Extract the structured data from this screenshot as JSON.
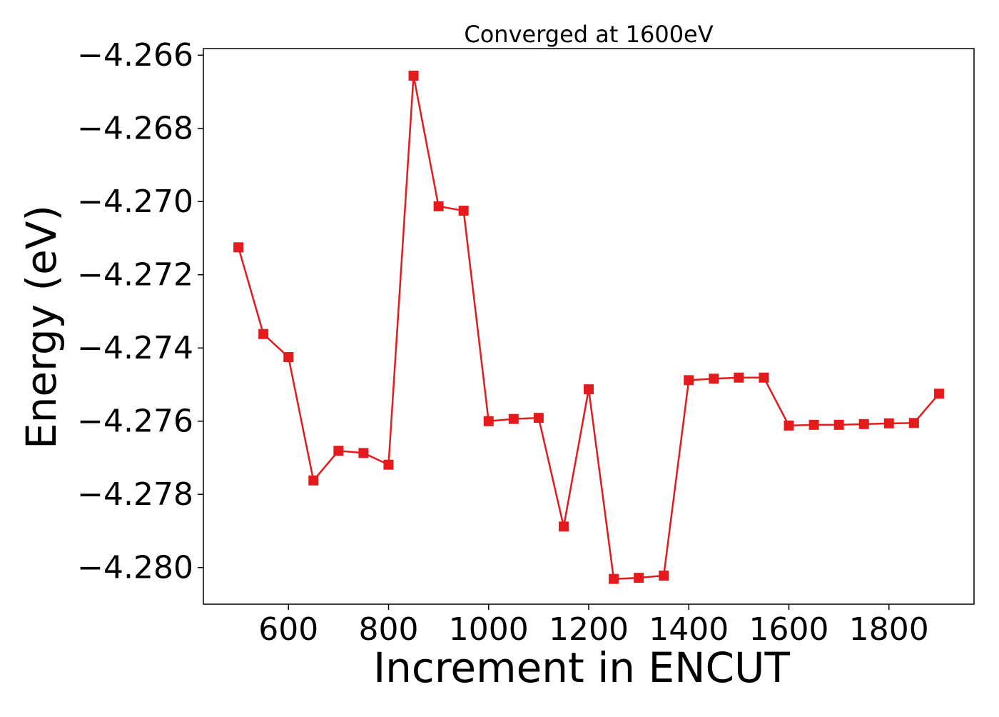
{
  "chart_data": {
    "type": "line",
    "title": "Converged at 1600eV",
    "xlabel": "Increment in ENCUT",
    "ylabel": "Energy (eV)",
    "xlim": [
      430,
      1970
    ],
    "ylim": [
      -4.281,
      -4.26582
    ],
    "xticks": [
      600,
      800,
      1000,
      1200,
      1400,
      1600,
      1800
    ],
    "xtick_labels": [
      "600",
      "800",
      "1000",
      "1200",
      "1400",
      "1600",
      "1800"
    ],
    "yticks": [
      -4.266,
      -4.268,
      -4.27,
      -4.272,
      -4.274,
      -4.276,
      -4.278,
      -4.28
    ],
    "ytick_labels": [
      "−4.266",
      "−4.268",
      "−4.270",
      "−4.272",
      "−4.274",
      "−4.276",
      "−4.278",
      "−4.280"
    ],
    "grid": false,
    "legend": "none",
    "marker": "square",
    "series": [
      {
        "color": "#e41a1c",
        "x": [
          500,
          550,
          600,
          650,
          700,
          750,
          800,
          850,
          900,
          950,
          1000,
          1050,
          1100,
          1150,
          1200,
          1250,
          1300,
          1350,
          1400,
          1450,
          1500,
          1550,
          1600,
          1650,
          1700,
          1750,
          1800,
          1850,
          1900
        ],
        "y": [
          -4.27125,
          -4.27362,
          -4.27425,
          -4.27762,
          -4.27681,
          -4.27687,
          -4.27719,
          -4.26656,
          -4.27013,
          -4.27025,
          -4.276,
          -4.27594,
          -4.27591,
          -4.27888,
          -4.27513,
          -4.28031,
          -4.28028,
          -4.28022,
          -4.27488,
          -4.27484,
          -4.27481,
          -4.27481,
          -4.27612,
          -4.2761,
          -4.2761,
          -4.27608,
          -4.27606,
          -4.27605,
          -4.27525
        ]
      }
    ]
  }
}
